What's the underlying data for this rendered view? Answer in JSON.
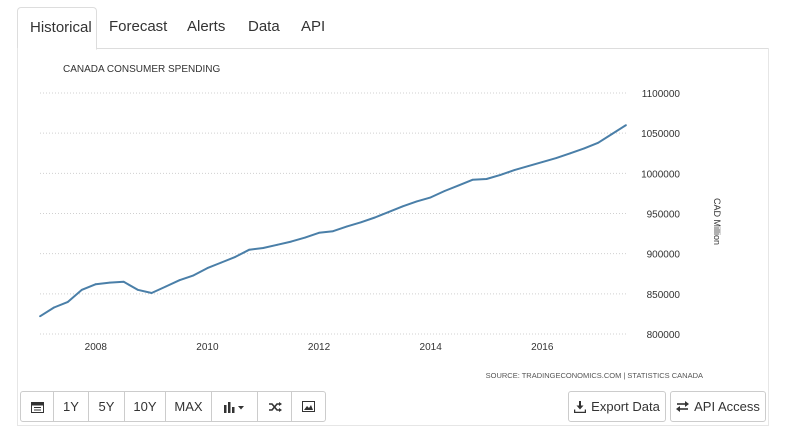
{
  "tabs": [
    {
      "label": "Historical",
      "active": true
    },
    {
      "label": "Forecast",
      "active": false
    },
    {
      "label": "Alerts",
      "active": false
    },
    {
      "label": "Data",
      "active": false
    },
    {
      "label": "API",
      "active": false
    }
  ],
  "toolbar": {
    "range_buttons": [
      "1Y",
      "5Y",
      "10Y",
      "MAX"
    ],
    "export_label": "Export Data",
    "api_label": "API Access"
  },
  "colors": {
    "line": "#4a7fa8",
    "grid": "#d0d0d0"
  },
  "chart_data": {
    "type": "line",
    "title": "CANADA CONSUMER SPENDING",
    "ylabel": "CAD Million",
    "source": "SOURCE: TRADINGECONOMICS.COM | STATISTICS CANADA",
    "xlim": [
      2007.0,
      2017.5
    ],
    "ylim": [
      800000,
      1100000
    ],
    "x_ticks": [
      "2008",
      "2010",
      "2012",
      "2014",
      "2016"
    ],
    "y_ticks": [
      "1100000",
      "1050000",
      "1000000",
      "950000",
      "900000",
      "850000",
      "800000"
    ],
    "grid": true,
    "series": [
      {
        "x": [
          2007.0,
          2007.25,
          2007.5,
          2007.75,
          2008.0,
          2008.25,
          2008.5,
          2008.75,
          2009.0,
          2009.25,
          2009.5,
          2009.75,
          2010.0,
          2010.25,
          2010.5,
          2010.75,
          2011.0,
          2011.25,
          2011.5,
          2011.75,
          2012.0,
          2012.25,
          2012.5,
          2012.75,
          2013.0,
          2013.25,
          2013.5,
          2013.75,
          2014.0,
          2014.25,
          2014.5,
          2014.75,
          2015.0,
          2015.25,
          2015.5,
          2015.75,
          2016.0,
          2016.25,
          2016.5,
          2016.75,
          2017.0,
          2017.25,
          2017.5
        ],
        "values": [
          822000,
          833000,
          840000,
          855000,
          862000,
          864000,
          865000,
          855000,
          851000,
          859000,
          867000,
          873000,
          882000,
          889000,
          896000,
          905000,
          907000,
          911000,
          915000,
          920000,
          926000,
          928000,
          934000,
          939000,
          945000,
          952000,
          959000,
          965000,
          970000,
          978000,
          985000,
          992000,
          993000,
          998000,
          1004000,
          1009000,
          1014000,
          1019000,
          1025000,
          1031000,
          1038000,
          1049000,
          1060000
        ]
      }
    ]
  }
}
